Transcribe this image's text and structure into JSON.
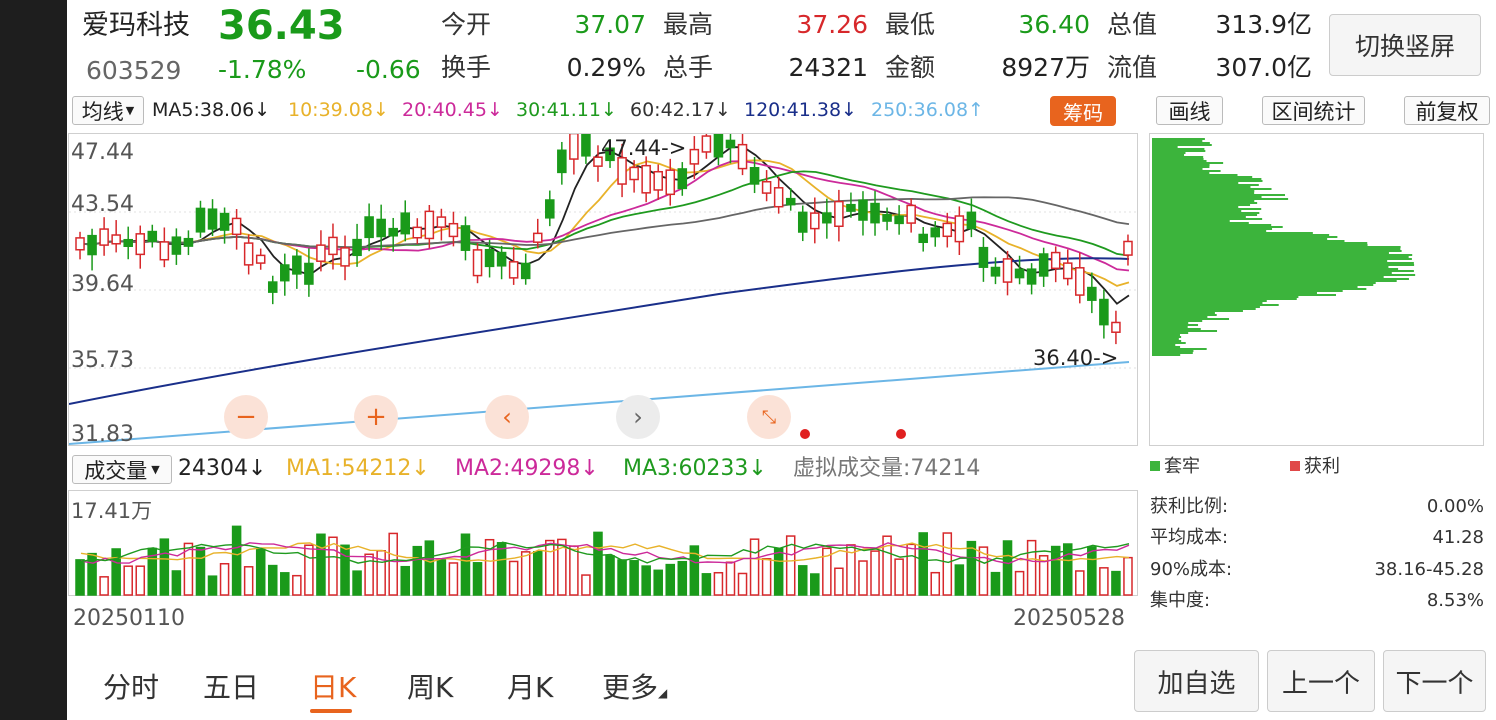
{
  "stock": {
    "name": "爱玛科技",
    "price": "36.43",
    "code": "603529",
    "change_pct": "-1.78%",
    "change": "-0.66"
  },
  "quote": {
    "open_label": "今开",
    "open": "37.07",
    "high_label": "最高",
    "high": "37.26",
    "low_label": "最低",
    "low": "36.40",
    "mktcap_label": "总值",
    "mktcap": "313.9亿",
    "turnover_label": "换手",
    "turnover": "0.29%",
    "volume_label": "总手",
    "volume": "24321",
    "amount_label": "金额",
    "amount": "8927万",
    "float_label": "流值",
    "float": "307.0亿"
  },
  "buttons": {
    "switch_portrait": "切换竖屏",
    "ma_select": "均线",
    "chips": "筹码",
    "draw": "画线",
    "interval_stats": "区间统计",
    "adjust": "前复权",
    "add_watch": "加自选",
    "prev": "上一个",
    "next": "下一个"
  },
  "ma_legend": {
    "ma5": "MA5:38.06↓",
    "ma10": "10:39.08↓",
    "ma20": "20:40.45↓",
    "ma30": "30:41.11↓",
    "ma60": "60:42.17↓",
    "ma120": "120:41.38↓",
    "ma250": "250:36.08↑"
  },
  "colors": {
    "ma5": "#222222",
    "ma10": "#e8b22a",
    "ma20": "#cc2a9a",
    "ma30": "#1f9a1f",
    "ma60": "#666666",
    "ma120": "#1a2f8a",
    "ma250": "#6cb6e6",
    "up": "#d7282b",
    "down": "#1a9a1a",
    "accent": "#e8641e"
  },
  "price_axis": [
    "47.44",
    "43.54",
    "39.64",
    "35.73",
    "31.83"
  ],
  "annotations": {
    "high_mark": "47.44->",
    "low_mark": "36.40->"
  },
  "volume_legend": {
    "select": "成交量",
    "current": "24304↓",
    "ma1": "MA1:54212↓",
    "ma2": "MA2:49298↓",
    "ma3": "MA3:60233↓",
    "virtual": "虚拟成交量:74214"
  },
  "volume_axis_max": "17.41万",
  "date_start": "20250110",
  "date_end": "20250528",
  "chips_panel": {
    "legend_trapped": "套牢",
    "legend_profit": "获利",
    "rows": [
      {
        "label": "获利比例:",
        "value": "0.00%"
      },
      {
        "label": "平均成本:",
        "value": "41.28"
      },
      {
        "label": "90%成本:",
        "value": "38.16-45.28"
      },
      {
        "label": "集中度:",
        "value": "8.53%"
      }
    ]
  },
  "period_tabs": [
    {
      "label": "分时",
      "active": false
    },
    {
      "label": "五日",
      "active": false
    },
    {
      "label": "日K",
      "active": true
    },
    {
      "label": "周K",
      "active": false
    },
    {
      "label": "月K",
      "active": false
    },
    {
      "label": "更多",
      "active": false
    }
  ]
}
